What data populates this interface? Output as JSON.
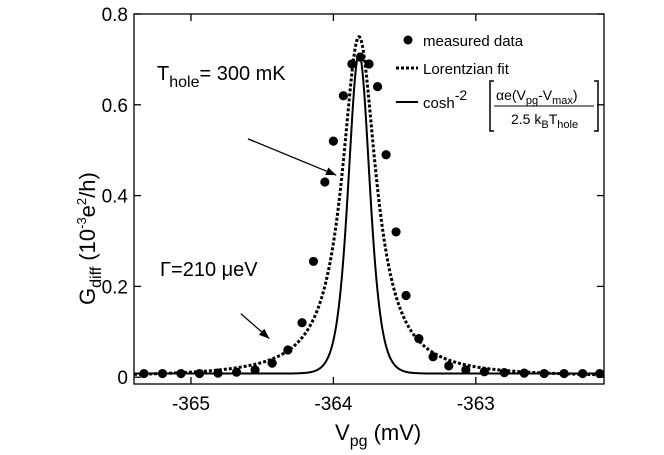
{
  "chart_data": {
    "type": "scatter",
    "xlabel": {
      "main": "V",
      "sub": "pg",
      "rest": " (mV)"
    },
    "ylabel": {
      "main": "G",
      "sub": "diff",
      "rest_open": " (10",
      "sup1": "-3",
      "mid": "e",
      "sup2": "2",
      "rest_close": "/h)"
    },
    "xlim": [
      -365.4,
      -362.1
    ],
    "ylim": [
      -0.015,
      0.8
    ],
    "xticks": [
      -365,
      -364,
      -363
    ],
    "xtick_labels": [
      "-365",
      "-364",
      "-363"
    ],
    "yticks": [
      0,
      0.2,
      0.4,
      0.6,
      0.8
    ],
    "ytick_labels": [
      "0",
      "0.2",
      "0.4",
      "0.6",
      "0.8"
    ],
    "grid": false,
    "legend_position": "top-right",
    "legend": {
      "measured": "measured data",
      "lorentz": "Lorentzian fit",
      "cosh_prefix": "cosh",
      "cosh_sup": "-2",
      "num_a": "αe(V",
      "num_sub1": "pg",
      "num_b": "-V",
      "num_sub2": "max",
      "num_c": ")",
      "den_a": "2.5 k",
      "den_sub1": "B",
      "den_b": "T",
      "den_sub2": "hole"
    },
    "annotations": {
      "thole": {
        "main": "T",
        "sub": "hole",
        "rest": "= 300 mK",
        "arrow_from": [
          -364.6,
          0.525
        ],
        "arrow_to": [
          -363.98,
          0.445
        ]
      },
      "gamma": {
        "text": "Γ=210 μeV",
        "arrow_from": [
          -364.65,
          0.14
        ],
        "arrow_to": [
          -364.45,
          0.085
        ]
      }
    },
    "series": [
      {
        "name": "measured data",
        "style": "markers",
        "x": [
          -365.33,
          -365.2,
          -365.07,
          -364.94,
          -364.81,
          -364.68,
          -364.55,
          -364.43,
          -364.32,
          -364.22,
          -364.14,
          -364.06,
          -364.0,
          -363.93,
          -363.87,
          -363.81,
          -363.75,
          -363.69,
          -363.63,
          -363.56,
          -363.49,
          -363.4,
          -363.3,
          -363.19,
          -363.07,
          -362.94,
          -362.8,
          -362.66,
          -362.52,
          -362.38,
          -362.25,
          -362.13
        ],
        "y": [
          0.008,
          0.008,
          0.008,
          0.008,
          0.009,
          0.011,
          0.016,
          0.031,
          0.06,
          0.12,
          0.255,
          0.43,
          0.52,
          0.62,
          0.69,
          0.705,
          0.69,
          0.64,
          0.49,
          0.32,
          0.18,
          0.085,
          0.045,
          0.025,
          0.016,
          0.012,
          0.01,
          0.009,
          0.008,
          0.008,
          0.008,
          0.008
        ]
      },
      {
        "name": "cosh fit",
        "style": "solid",
        "center": -363.82,
        "amplitude": 0.705,
        "width": 0.1,
        "offset": 0.008
      },
      {
        "name": "Lorentzian fit",
        "style": "dotted",
        "center": -363.82,
        "amplitude": 0.75,
        "hwhm": 0.145,
        "offset": 0.0
      }
    ]
  }
}
